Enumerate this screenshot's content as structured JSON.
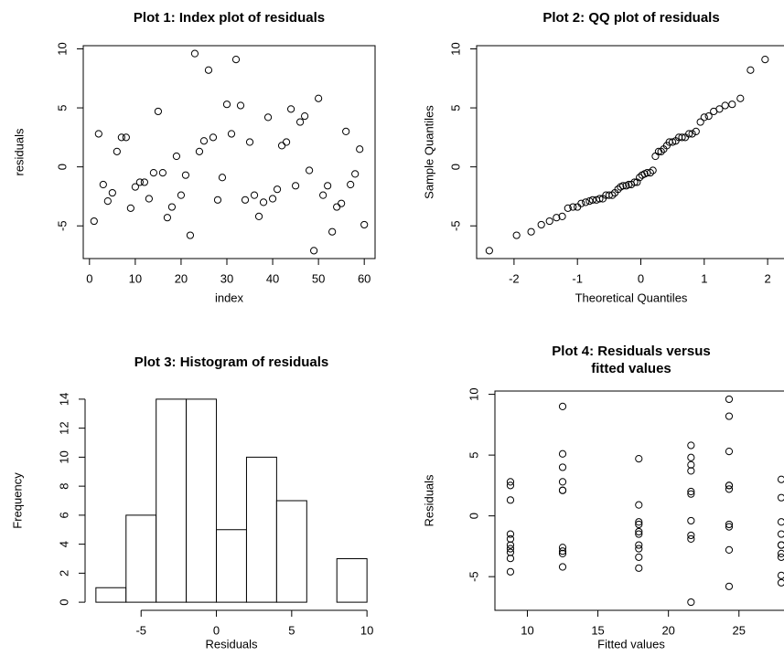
{
  "chart_data": [
    {
      "type": "scatter",
      "title": [
        "Plot 1: Index plot of residuals"
      ],
      "x_label": "index",
      "y_label": "residuals",
      "box": true,
      "x": [
        1,
        2,
        3,
        4,
        5,
        6,
        7,
        8,
        9,
        10,
        11,
        12,
        13,
        14,
        15,
        16,
        17,
        18,
        19,
        20,
        21,
        22,
        23,
        24,
        25,
        26,
        27,
        28,
        29,
        30,
        31,
        32,
        33,
        34,
        35,
        36,
        37,
        38,
        39,
        40,
        41,
        42,
        43,
        44,
        45,
        46,
        47,
        48,
        49,
        50,
        51,
        52,
        53,
        54,
        55,
        56,
        57,
        58,
        59,
        60
      ],
      "values": [
        -4.6,
        2.8,
        -1.5,
        -2.9,
        -2.2,
        1.3,
        2.5,
        2.5,
        -3.5,
        -1.7,
        -1.3,
        -1.3,
        -2.7,
        -0.5,
        4.7,
        -0.5,
        -4.3,
        -3.4,
        0.9,
        -2.4,
        -0.7,
        -5.8,
        9.6,
        1.3,
        2.2,
        8.2,
        2.5,
        -2.8,
        -0.9,
        5.3,
        2.8,
        9.1,
        5.2,
        -2.8,
        2.1,
        -2.4,
        -4.2,
        -3.0,
        4.2,
        -2.7,
        -1.9,
        1.8,
        2.1,
        4.9,
        -1.6,
        3.8,
        4.3,
        -0.3,
        -7.1,
        5.8,
        -2.4,
        -1.6,
        -5.5,
        -3.4,
        -3.1,
        3.0,
        -1.5,
        -0.6,
        1.5,
        -4.9
      ],
      "xlim": [
        -1.36,
        62.36
      ],
      "ylim": [
        -7.77,
        10.27
      ],
      "xticks": [
        0,
        10,
        20,
        30,
        40,
        50,
        60
      ],
      "yticks": [
        -5,
        0,
        5,
        10
      ],
      "color": "#000000"
    },
    {
      "type": "scatter",
      "title": [
        "Plot 2: QQ plot of residuals"
      ],
      "x_label": "Theoretical Quantiles",
      "y_label": "Sample Quantiles",
      "box": true,
      "x": [
        -2.39,
        -1.96,
        -1.73,
        -1.57,
        -1.44,
        -1.33,
        -1.24,
        -1.15,
        -1.07,
        -1.0,
        -0.94,
        -0.87,
        -0.81,
        -0.76,
        -0.7,
        -0.65,
        -0.6,
        -0.55,
        -0.5,
        -0.45,
        -0.41,
        -0.36,
        -0.32,
        -0.28,
        -0.23,
        -0.19,
        -0.15,
        -0.1,
        -0.06,
        -0.02,
        0.02,
        0.06,
        0.1,
        0.15,
        0.19,
        0.23,
        0.28,
        0.32,
        0.36,
        0.41,
        0.45,
        0.5,
        0.55,
        0.6,
        0.65,
        0.7,
        0.76,
        0.81,
        0.87,
        0.94,
        1.0,
        1.07,
        1.15,
        1.24,
        1.33,
        1.44,
        1.57,
        1.73,
        1.96,
        2.39
      ],
      "values": [
        -7.1,
        -5.8,
        -5.5,
        -4.9,
        -4.6,
        -4.3,
        -4.2,
        -3.5,
        -3.4,
        -3.4,
        -3.1,
        -3.0,
        -2.9,
        -2.8,
        -2.8,
        -2.7,
        -2.7,
        -2.4,
        -2.4,
        -2.4,
        -2.2,
        -1.9,
        -1.7,
        -1.6,
        -1.6,
        -1.5,
        -1.5,
        -1.3,
        -1.3,
        -0.9,
        -0.7,
        -0.6,
        -0.5,
        -0.5,
        -0.3,
        0.9,
        1.3,
        1.3,
        1.5,
        1.8,
        2.1,
        2.1,
        2.2,
        2.5,
        2.5,
        2.5,
        2.8,
        2.8,
        3.0,
        3.8,
        4.2,
        4.3,
        4.7,
        4.9,
        5.2,
        5.3,
        5.8,
        8.2,
        9.1,
        9.6
      ],
      "xlim": [
        -2.59,
        2.59
      ],
      "ylim": [
        -7.77,
        10.27
      ],
      "xticks": [
        -2,
        -1,
        0,
        1,
        2
      ],
      "yticks": [
        -5,
        0,
        5,
        10
      ],
      "color": "#000000"
    },
    {
      "type": "histogram",
      "title": [
        "Plot 3: Histogram of residuals"
      ],
      "x_label": "Residuals",
      "y_label": "Frequency",
      "box": false,
      "bins": [
        -8,
        -6,
        -4,
        -2,
        0,
        2,
        4,
        6,
        8,
        10
      ],
      "values": [
        1,
        6,
        14,
        14,
        5,
        10,
        7,
        0,
        3
      ],
      "xlim": [
        -8.72,
        10.72
      ],
      "ylim": [
        -0.56,
        14.56
      ],
      "xticks": [
        -5,
        0,
        5,
        10
      ],
      "yticks": [
        0,
        2,
        4,
        6,
        8,
        10,
        12,
        14
      ],
      "color": "#ffffff"
    },
    {
      "type": "scatter",
      "title": [
        "Plot 4: Residuals versus",
        "fitted values"
      ],
      "x_label": "Fitted values",
      "y_label": "Residuals",
      "box": true,
      "x": [
        8.8,
        8.8,
        8.8,
        8.8,
        8.8,
        8.8,
        8.8,
        8.8,
        8.8,
        8.8,
        12.5,
        12.5,
        12.5,
        12.5,
        12.5,
        12.5,
        12.5,
        12.5,
        12.5,
        12.5,
        17.9,
        17.9,
        17.9,
        17.9,
        17.9,
        17.9,
        17.9,
        17.9,
        17.9,
        17.9,
        21.6,
        21.6,
        21.6,
        21.6,
        21.6,
        21.6,
        21.6,
        21.6,
        21.6,
        21.6,
        24.3,
        24.3,
        24.3,
        24.3,
        24.3,
        24.3,
        24.3,
        24.3,
        24.3,
        24.3,
        28.0,
        28.0,
        28.0,
        28.0,
        28.0,
        28.0,
        28.0,
        28.0,
        28.0,
        28.0
      ],
      "values": [
        2.8,
        2.5,
        1.3,
        -1.5,
        -1.9,
        -2.4,
        -2.7,
        -3.0,
        -3.5,
        -4.6,
        9.0,
        5.1,
        4.0,
        2.8,
        2.1,
        2.1,
        -2.6,
        -2.9,
        -3.1,
        -4.2,
        4.7,
        0.9,
        -0.5,
        -0.7,
        -1.3,
        -1.5,
        -2.4,
        -2.7,
        -3.4,
        -4.3,
        5.8,
        4.8,
        4.2,
        3.7,
        2.0,
        1.8,
        -0.4,
        -1.6,
        -1.9,
        -7.1,
        9.6,
        8.2,
        5.3,
        2.5,
        2.5,
        2.2,
        -0.7,
        -0.9,
        -2.8,
        -5.8,
        3.0,
        1.5,
        -0.5,
        -1.5,
        -2.4,
        -2.4,
        -3.1,
        -3.4,
        -4.9,
        -5.5
      ],
      "xlim": [
        7.7,
        29.1
      ],
      "ylim": [
        -7.77,
        10.27
      ],
      "xticks": [
        10,
        15,
        20,
        25
      ],
      "yticks": [
        -5,
        0,
        5,
        10
      ],
      "color": "#000000"
    }
  ]
}
